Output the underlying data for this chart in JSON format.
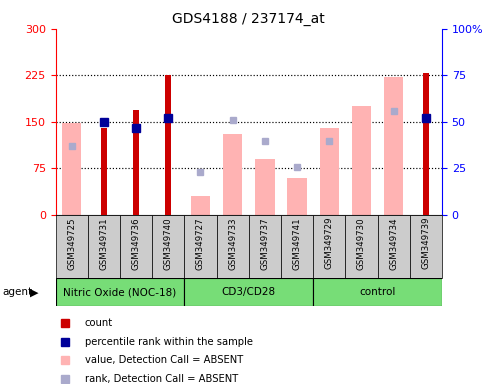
{
  "title": "GDS4188 / 237174_at",
  "samples": [
    "GSM349725",
    "GSM349731",
    "GSM349736",
    "GSM349740",
    "GSM349727",
    "GSM349733",
    "GSM349737",
    "GSM349741",
    "GSM349729",
    "GSM349730",
    "GSM349734",
    "GSM349739"
  ],
  "groups": [
    {
      "label": "Nitric Oxide (NOC-18)",
      "start": 0,
      "end": 4
    },
    {
      "label": "CD3/CD28",
      "start": 4,
      "end": 8
    },
    {
      "label": "control",
      "start": 8,
      "end": 12
    }
  ],
  "red_bars": [
    null,
    140,
    170,
    225,
    null,
    null,
    null,
    null,
    null,
    null,
    null,
    228
  ],
  "pink_bars": [
    148,
    null,
    null,
    null,
    30,
    130,
    90,
    60,
    140,
    175,
    222,
    null
  ],
  "blue_sq_pct": [
    null,
    50,
    47,
    52,
    null,
    null,
    null,
    null,
    null,
    null,
    null,
    52
  ],
  "light_blue_sq_pct": [
    37,
    null,
    null,
    null,
    23,
    51,
    40,
    26,
    40,
    null,
    56,
    null
  ],
  "ylim_left": [
    0,
    300
  ],
  "ylim_right": [
    0,
    100
  ],
  "yticks_left": [
    0,
    75,
    150,
    225,
    300
  ],
  "yticks_right": [
    0,
    25,
    50,
    75,
    100
  ],
  "dotted_lines": [
    75,
    150,
    225
  ],
  "red_color": "#cc0000",
  "pink_color": "#ffb3b3",
  "blue_color": "#000099",
  "light_blue_color": "#aaaacc",
  "green_color": "#77dd77",
  "gray_color": "#cccccc",
  "legend_items": [
    {
      "color": "#cc0000",
      "label": "count"
    },
    {
      "color": "#000099",
      "label": "percentile rank within the sample"
    },
    {
      "color": "#ffb3b3",
      "label": "value, Detection Call = ABSENT"
    },
    {
      "color": "#aaaacc",
      "label": "rank, Detection Call = ABSENT"
    }
  ]
}
